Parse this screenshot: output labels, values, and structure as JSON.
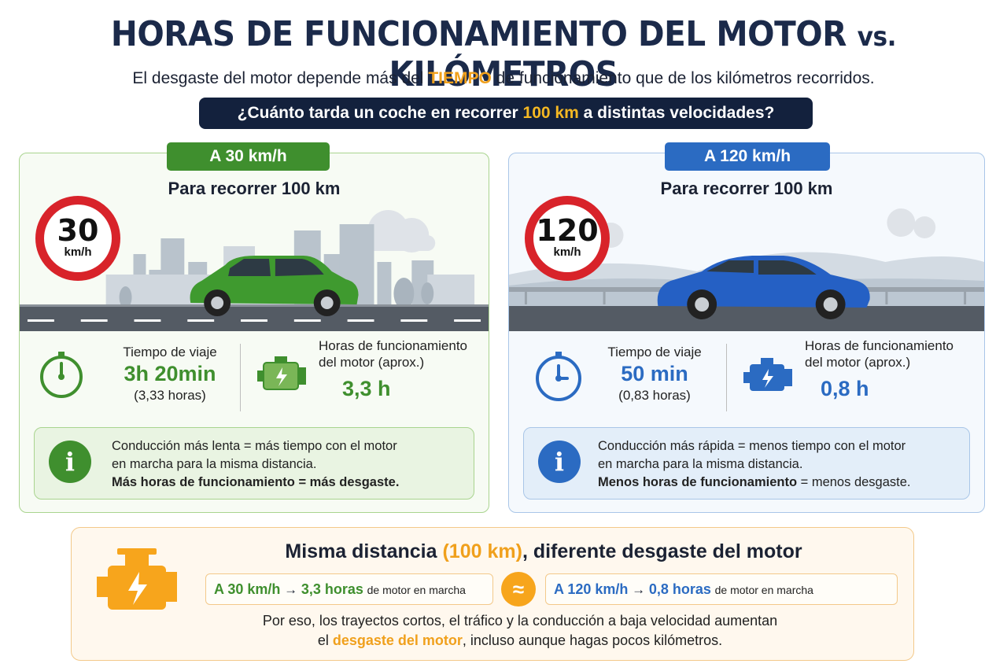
{
  "header": {
    "title_main": "HORAS DE FUNCIONAMIENTO DEL MOTOR ",
    "title_vs": "vs.",
    "title_end": " KILÓMETROS",
    "subtitle_pre": "El desgaste del motor depende más del ",
    "subtitle_highlight": "TIEMPO",
    "subtitle_post": " de funcionamiento que de los kilómetros recorridos.",
    "question_pre": "¿Cuánto tarda un coche en recorrer ",
    "question_highlight": "100 km",
    "question_post": " a distintas velocidades?"
  },
  "panels": [
    {
      "tag": "A 30 km/h",
      "heading": "Para recorrer 100 km",
      "sign_number": "30",
      "sign_unit": "km/h",
      "car_color": "#3f9a2f",
      "travel_label": "Tiempo de viaje",
      "travel_value": "3h 20min",
      "travel_sub": "(3,33 horas)",
      "engine_label_1": "Horas de funcionamiento",
      "engine_label_2": "del motor  (aprox.)",
      "engine_value": "3,3 h",
      "info_line1": "Conducción más lenta = más tiempo con el motor",
      "info_line2": "en marcha para la misma distancia.",
      "info_line3": "Más horas de funcionamiento = más desgaste."
    },
    {
      "tag": "A 120 km/h",
      "heading": "Para recorrer 100 km",
      "sign_number": "120",
      "sign_unit": "km/h",
      "car_color": "#2560c4",
      "travel_label": "Tiempo de viaje",
      "travel_value": "50 min",
      "travel_sub": "(0,83 horas)",
      "engine_label_1": "Horas de funcionamiento",
      "engine_label_2": "del motor  (aprox.)",
      "engine_value": "0,8 h",
      "info_line1": "Conducción más rápida = menos tiempo con el motor",
      "info_line2": "en marcha para la misma distancia.",
      "info_line3_bold": "Menos horas de funcionamiento",
      "info_line3_rest": " = menos desgaste."
    }
  ],
  "bottom": {
    "heading_pre": "Misma distancia ",
    "heading_highlight": "(100 km)",
    "heading_post": ", diferente desgaste del motor",
    "cmp1_speed": "A 30 km/h",
    "cmp1_value": "3,3 horas",
    "cmp2_speed": "A 120 km/h",
    "cmp2_value": "0,8 horas",
    "cmp_suffix": "de motor en marcha",
    "arrow": "→",
    "approx": "≈",
    "text_line1": "Por eso, los trayectos cortos, el tráfico y la conducción a baja velocidad aumentan",
    "text_line2_pre": "el ",
    "text_line2_highlight": "desgaste del motor",
    "text_line2_post": ", incluso aunque hagas pocos kilómetros."
  },
  "colors": {
    "green": "#3f8f2e",
    "blue": "#2b6bc2",
    "orange": "#f0a01c",
    "navy": "#13213d",
    "sign_red": "#d8232a"
  },
  "icons": [
    "timer-icon",
    "engine-icon",
    "info-icon",
    "approx-icon"
  ]
}
